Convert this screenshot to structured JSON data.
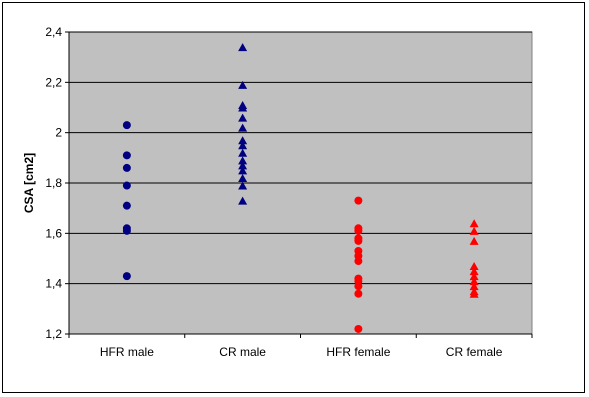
{
  "chart_data": {
    "type": "scatter",
    "title": "",
    "xlabel": "",
    "ylabel": "CSA [cm2]",
    "categories": [
      "HFR male",
      "CR male",
      "HFR female",
      "CR female"
    ],
    "ylim": [
      1.2,
      2.4
    ],
    "yticks": [
      "1,2",
      "1,4",
      "1,6",
      "1,8",
      "2",
      "2,2",
      "2,4"
    ],
    "ytick_values": [
      1.2,
      1.4,
      1.6,
      1.8,
      2.0,
      2.2,
      2.4
    ],
    "grid": true,
    "legend": "none",
    "plot_background": "#c0c0c0",
    "series": [
      {
        "category": "HFR male",
        "marker": "circle",
        "color": "#000080",
        "values": [
          2.03,
          1.91,
          1.86,
          1.79,
          1.71,
          1.62,
          1.61,
          1.43
        ]
      },
      {
        "category": "CR male",
        "marker": "triangle",
        "color": "#000080",
        "values": [
          2.34,
          2.19,
          2.11,
          2.1,
          2.06,
          2.02,
          1.97,
          1.95,
          1.92,
          1.89,
          1.87,
          1.85,
          1.82,
          1.79,
          1.73
        ]
      },
      {
        "category": "HFR female",
        "marker": "circle",
        "color": "#ff0000",
        "values": [
          1.73,
          1.62,
          1.61,
          1.58,
          1.57,
          1.53,
          1.51,
          1.49,
          1.42,
          1.41,
          1.39,
          1.36,
          1.22
        ]
      },
      {
        "category": "CR female",
        "marker": "triangle",
        "color": "#ff0000",
        "values": [
          1.64,
          1.61,
          1.57,
          1.47,
          1.45,
          1.43,
          1.41,
          1.39,
          1.37,
          1.36
        ]
      }
    ]
  }
}
